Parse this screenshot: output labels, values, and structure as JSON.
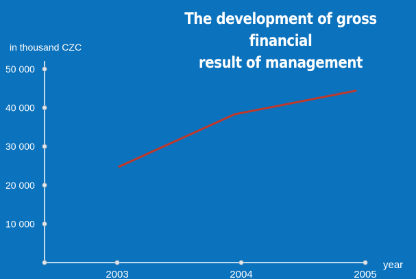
{
  "chart_data": {
    "type": "line",
    "title_lines": [
      "The development of gross financial",
      "result of management"
    ],
    "ylabel": "in thousand CZC",
    "xlabel": "year",
    "x": [
      "2003",
      "2004",
      "2005"
    ],
    "ytick_labels": [
      "10 000",
      "20 000",
      "30 000",
      "40 000",
      "50 000"
    ],
    "yticks": [
      10000,
      20000,
      30000,
      40000,
      50000
    ],
    "ylim": [
      0,
      50000
    ],
    "series": [
      {
        "values": [
          24800,
          38300,
          44400
        ]
      }
    ],
    "grid": false,
    "colors": {
      "background": "#0b72bd",
      "line": "#c0392b",
      "axis": "#ffffff"
    }
  }
}
